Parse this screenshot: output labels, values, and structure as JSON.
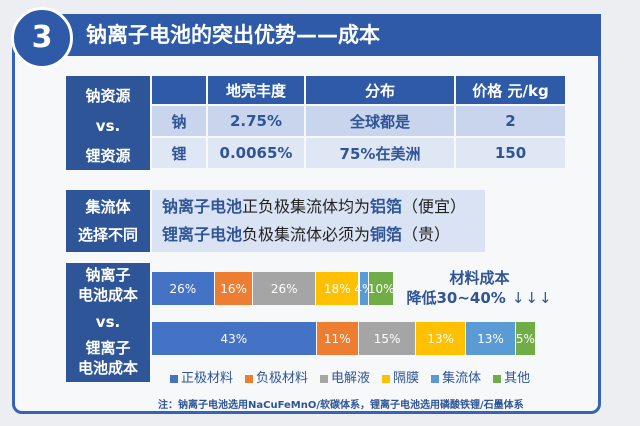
{
  "slide": {
    "number": "3",
    "title": "钠离子电池的突出优势——成本"
  },
  "colors": {
    "primary": "#2e5597",
    "title_bar": "#2e5aa8",
    "frame": "#3563b5",
    "accent_text": "#2f5597",
    "table_row_1": "#c9d5ec",
    "table_row_2": "#e0e7f4",
    "info_box": "#dae3f3",
    "body_text": "#222222"
  },
  "resources": {
    "label_lines": [
      "钠资源",
      "vs.",
      "锂资源"
    ],
    "table": {
      "headers": [
        "地壳丰度",
        "分布",
        "价格 元/kg"
      ],
      "rows": [
        [
          "钠",
          "2.75%",
          "全球都是",
          "2"
        ],
        [
          "锂",
          "0.0065%",
          "75%在美洲",
          "150"
        ]
      ]
    }
  },
  "current_collector": {
    "label_lines": [
      "集流体",
      "选择不同"
    ],
    "lines": [
      {
        "product": "钠离子电池",
        "text": "正负极集流体均为",
        "material": "铝箔",
        "note": "（便宜）"
      },
      {
        "product": "锂离子电池",
        "text": "负极集流体必须为",
        "material": "铜箔",
        "note": "（贵）"
      }
    ]
  },
  "chart_data": {
    "type": "bar",
    "orientation": "horizontal",
    "stacked": true,
    "categories": [
      [
        "钠离子",
        "电池成本"
      ],
      [
        "锂离子",
        "电池成本"
      ]
    ],
    "category_separator": "vs.",
    "value_unit": "%",
    "relative_total": [
      0.63,
      1.0
    ],
    "series": [
      {
        "name": "正极材料",
        "color": "#4472c4",
        "values": [
          26,
          43
        ]
      },
      {
        "name": "负极材料",
        "color": "#ed7d31",
        "values": [
          16,
          11
        ]
      },
      {
        "name": "电解液",
        "color": "#a5a5a5",
        "values": [
          26,
          15
        ]
      },
      {
        "name": "隔膜",
        "color": "#ffc000",
        "values": [
          18,
          13
        ]
      },
      {
        "name": "集流体",
        "color": "#5b9bd5",
        "values": [
          4,
          13
        ]
      },
      {
        "name": "其他",
        "color": "#70ad47",
        "values": [
          10,
          5
        ]
      }
    ],
    "legend": "bottom",
    "grid": false,
    "annotation": {
      "title": "材料成本",
      "text": "降低30~40%",
      "arrows": "↓↓↓"
    }
  },
  "footnote": "注：钠离子电池选用NaCuFeMnO/软碳体系，锂离子电池选用磷酸铁锂/石墨体系"
}
